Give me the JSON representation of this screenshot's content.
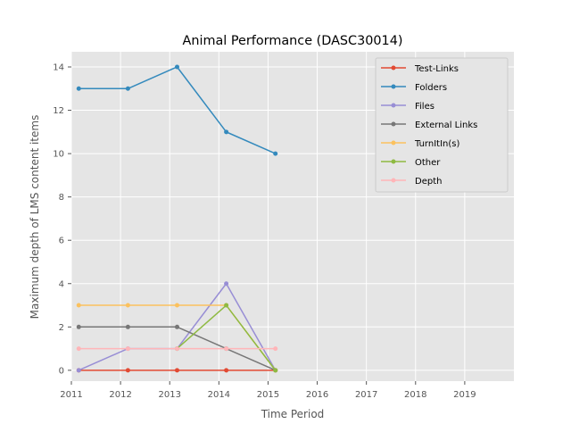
{
  "chart_data": {
    "type": "line",
    "title": "Animal Performance (DASC30014)",
    "xlabel": "Time Period",
    "ylabel": "Maximum depth of LMS content items",
    "xlim": [
      2011,
      2020
    ],
    "ylim": [
      -0.5,
      14.7
    ],
    "x_ticks": [
      2011,
      2012,
      2013,
      2014,
      2015,
      2016,
      2017,
      2018,
      2019
    ],
    "y_ticks": [
      0,
      2,
      4,
      6,
      8,
      10,
      12,
      14
    ],
    "x": [
      2011.15,
      2012.15,
      2013.15,
      2014.15,
      2015.15
    ],
    "grid": true,
    "legend_position": "top-right",
    "series": [
      {
        "name": "Test-Links",
        "color": "#E24A33",
        "values": [
          0,
          0,
          0,
          0,
          0
        ]
      },
      {
        "name": "Folders",
        "color": "#348ABD",
        "values": [
          13,
          13,
          14,
          11,
          10
        ]
      },
      {
        "name": "Files",
        "color": "#988ED5",
        "values": [
          0,
          1,
          1,
          4,
          0
        ]
      },
      {
        "name": "External Links",
        "color": "#777777",
        "values": [
          2,
          2,
          2,
          1,
          0
        ]
      },
      {
        "name": "TurnItIn(s)",
        "color": "#FBC15E",
        "values": [
          3,
          3,
          3,
          3,
          0
        ]
      },
      {
        "name": "Other",
        "color": "#8EBA42",
        "values": [
          null,
          null,
          1,
          3,
          0
        ]
      },
      {
        "name": "Depth",
        "color": "#FFB5B8",
        "values": [
          1,
          1,
          1,
          1,
          1
        ]
      }
    ]
  }
}
